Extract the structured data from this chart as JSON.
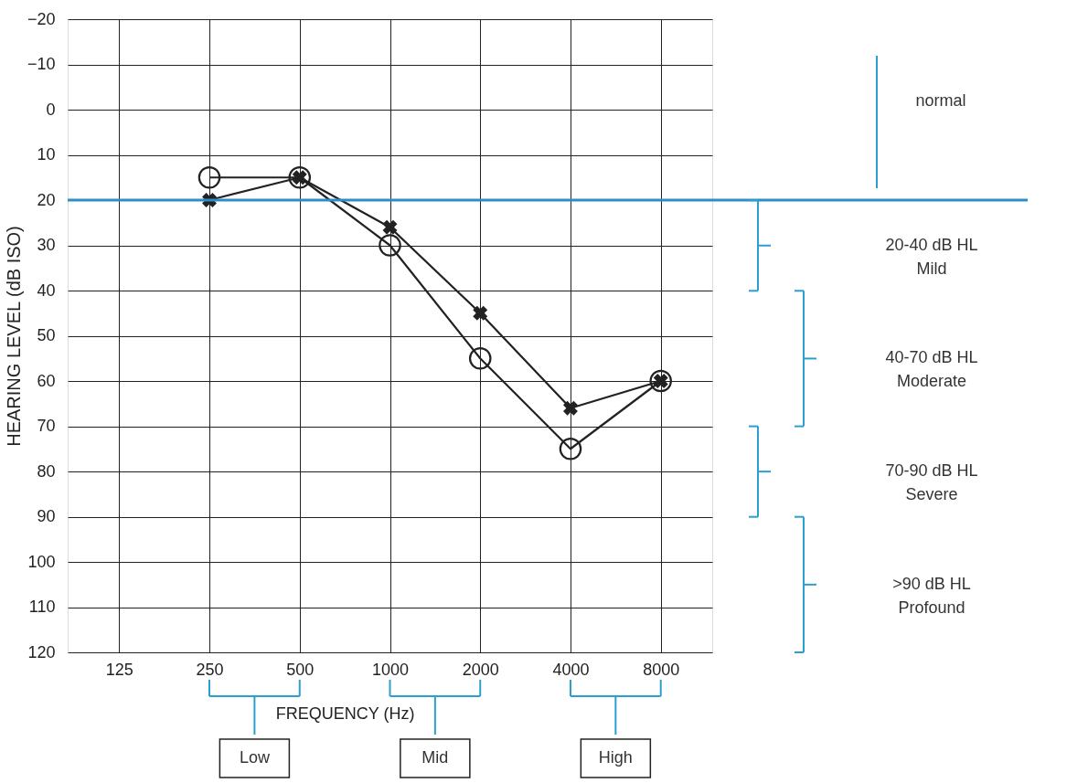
{
  "chart_data": {
    "type": "line",
    "xlabel": "FREQUENCY (Hz)",
    "ylabel": "HEARING LEVEL (dB ISO)",
    "categories": [
      "125",
      "250",
      "500",
      "1000",
      "2000",
      "4000",
      "8000"
    ],
    "series": [
      {
        "color": "#222222",
        "marker": "circle",
        "values": [
          null,
          15,
          15,
          30,
          55,
          75,
          60
        ]
      },
      {
        "color": "#222222",
        "marker": "cross",
        "values": [
          null,
          20,
          15,
          26,
          45,
          66,
          60
        ]
      }
    ],
    "ylim": [
      120,
      -20
    ],
    "yticks": [
      {
        "value": -20,
        "label": "−20"
      },
      {
        "value": -10,
        "label": "−10"
      },
      0,
      10,
      20,
      30,
      40,
      50,
      60,
      70,
      80,
      90,
      100,
      110,
      120
    ],
    "grid": true,
    "ref_lines": [
      {
        "axis": "y",
        "value": 20,
        "color": "#2a8fc8"
      }
    ],
    "annotations": [
      "normal",
      "Low",
      "Mid",
      "High",
      "20-40 dB HL\nMild",
      "40-70 dB HL\nModerate",
      "70-90 dB HL\nSevere",
      ">90 dB HL\nProfound"
    ]
  }
}
